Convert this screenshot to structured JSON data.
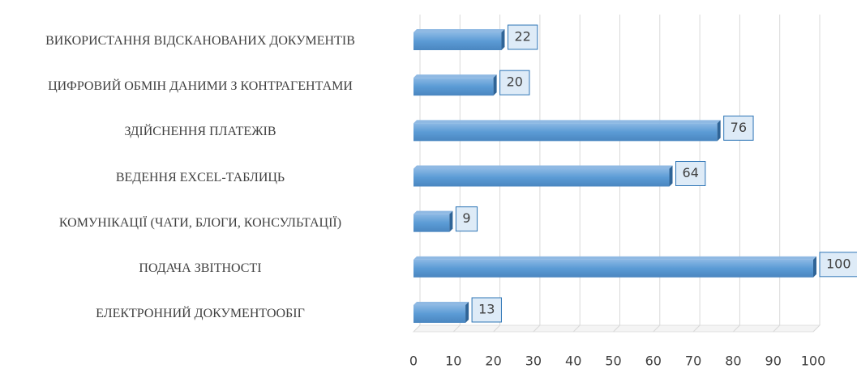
{
  "chart_data": {
    "type": "bar",
    "orientation": "horizontal",
    "categories": [
      "ВИКОРИСТАННЯ ВІДСКАНОВАНИХ ДОКУМЕНТІВ",
      "ЦИФРОВИЙ ОБМІН ДАНИМИ З КОНТРАГЕНТАМИ",
      "ЗДІЙСНЕННЯ ПЛАТЕЖІВ",
      "ВЕДЕННЯ EXCEL-ТАБЛИЦЬ",
      "КОМУНІКАЦІЇ (ЧАТИ, БЛОГИ, КОНСУЛЬТАЦІЇ)",
      "ПОДАЧА ЗВІТНОСТІ",
      "ЕЛЕКТРОННИЙ ДОКУМЕНТООБІГ"
    ],
    "values": [
      22,
      20,
      76,
      64,
      9,
      100,
      13
    ],
    "color": "#5b9bd5",
    "xlim": [
      0,
      100
    ],
    "xticks": [
      0,
      10,
      20,
      30,
      40,
      50,
      60,
      70,
      80,
      90,
      100
    ],
    "grid": true
  }
}
